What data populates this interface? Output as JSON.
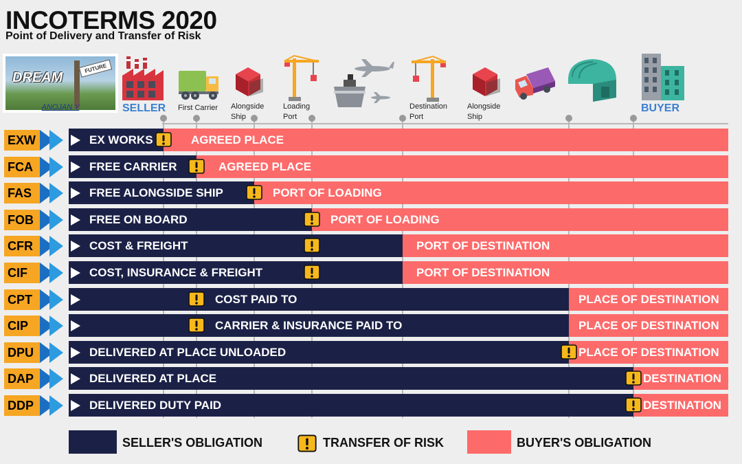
{
  "header": {
    "title": "INCOTERMS 2020",
    "subtitle": "Point of Delivery and Transfer of Risk"
  },
  "logo": {
    "word": "DREAM",
    "sign": "FUTURE",
    "name": "ANOJAN Y"
  },
  "points": [
    {
      "label": "SELLER"
    },
    {
      "label": "First Carrier"
    },
    {
      "label": "Alongside Ship"
    },
    {
      "label": "Loading Port"
    },
    {
      "label": "Destination Port"
    },
    {
      "label": "Alongside Ship"
    },
    {
      "label": "BUYER"
    }
  ],
  "terms": [
    {
      "code": "EXW",
      "name": "EX WORKS",
      "buyer": "AGREED PLACE"
    },
    {
      "code": "FCA",
      "name": "FREE CARRIER",
      "buyer": "AGREED PLACE"
    },
    {
      "code": "FAS",
      "name": "FREE ALONGSIDE SHIP",
      "buyer": "PORT OF LOADING"
    },
    {
      "code": "FOB",
      "name": "FREE ON BOARD",
      "buyer": "PORT OF LOADING"
    },
    {
      "code": "CFR",
      "name": "COST & FREIGHT",
      "buyer": "PORT OF DESTINATION"
    },
    {
      "code": "CIF",
      "name": "COST, INSURANCE & FREIGHT",
      "buyer": "PORT OF DESTINATION"
    },
    {
      "code": "CPT",
      "name": "COST PAID TO",
      "buyer": "PLACE OF DESTINATION"
    },
    {
      "code": "CIP",
      "name": "CARRIER & INSURANCE PAID TO",
      "buyer": "PLACE OF DESTINATION"
    },
    {
      "code": "DPU",
      "name": "DELIVERED AT PLACE UNLOADED",
      "buyer": "PLACE OF DESTINATION"
    },
    {
      "code": "DAP",
      "name": "DELIVERED AT PLACE",
      "buyer": "DESTINATION"
    },
    {
      "code": "DDP",
      "name": "DELIVERED DUTY PAID",
      "buyer": "DESTINATION"
    }
  ],
  "legend": {
    "seller": "SELLER'S OBLIGATION",
    "risk": "TRANSFER OF RISK",
    "buyer": "BUYER'S OBLIGATION"
  },
  "colors": {
    "seller": "#1b2146",
    "buyer": "#fd6a6a",
    "code": "#f6a623",
    "risk": "#f6b81c",
    "accent": "#3a7fd0"
  }
}
